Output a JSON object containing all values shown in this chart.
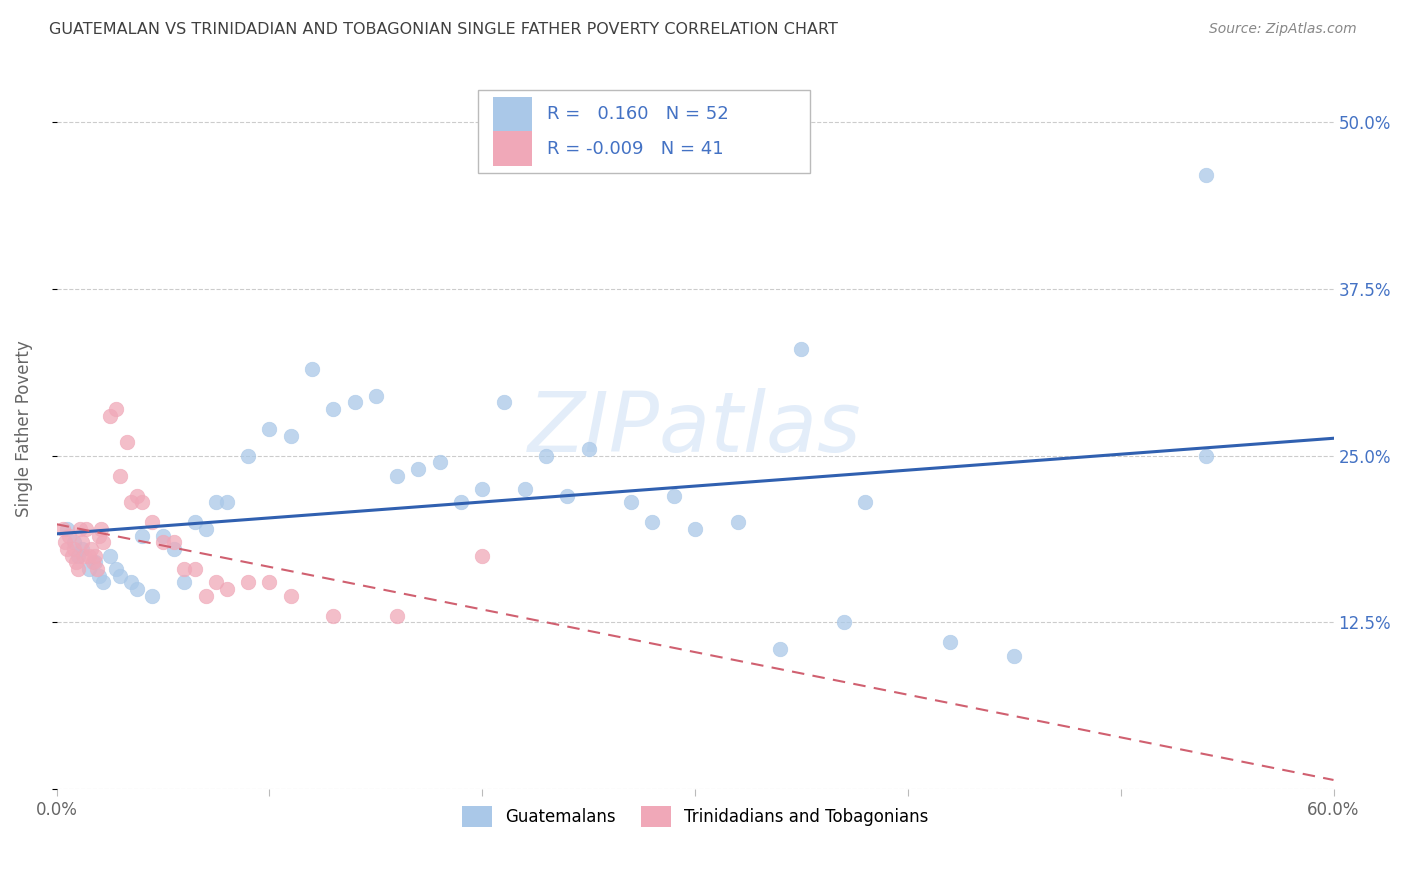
{
  "title": "GUATEMALAN VS TRINIDADIAN AND TOBAGONIAN SINGLE FATHER POVERTY CORRELATION CHART",
  "source": "Source: ZipAtlas.com",
  "ylabel": "Single Father Poverty",
  "R_blue": 0.16,
  "N_blue": 52,
  "R_pink": -0.009,
  "N_pink": 41,
  "blue_color": "#aac8e8",
  "pink_color": "#f0a8b8",
  "blue_line_color": "#3060b0",
  "pink_line_color": "#d06070",
  "text_color": "#4472c4",
  "title_color": "#404040",
  "source_color": "#888888",
  "watermark": "ZIPatlas",
  "xlim": [
    0.0,
    0.6
  ],
  "ylim": [
    0.0,
    0.54
  ],
  "blue_x": [
    0.005,
    0.008,
    0.01,
    0.012,
    0.015,
    0.018,
    0.02,
    0.022,
    0.025,
    0.028,
    0.03,
    0.035,
    0.038,
    0.04,
    0.045,
    0.05,
    0.055,
    0.06,
    0.065,
    0.07,
    0.075,
    0.08,
    0.09,
    0.1,
    0.11,
    0.12,
    0.13,
    0.14,
    0.15,
    0.16,
    0.17,
    0.18,
    0.19,
    0.2,
    0.21,
    0.22,
    0.23,
    0.24,
    0.25,
    0.27,
    0.28,
    0.29,
    0.3,
    0.32,
    0.34,
    0.35,
    0.37,
    0.38,
    0.42,
    0.45,
    0.54,
    0.54
  ],
  "blue_y": [
    0.195,
    0.185,
    0.175,
    0.18,
    0.165,
    0.17,
    0.16,
    0.155,
    0.175,
    0.165,
    0.16,
    0.155,
    0.15,
    0.19,
    0.145,
    0.19,
    0.18,
    0.155,
    0.2,
    0.195,
    0.215,
    0.215,
    0.25,
    0.27,
    0.265,
    0.315,
    0.285,
    0.29,
    0.295,
    0.235,
    0.24,
    0.245,
    0.215,
    0.225,
    0.29,
    0.225,
    0.25,
    0.22,
    0.255,
    0.215,
    0.2,
    0.22,
    0.195,
    0.2,
    0.105,
    0.33,
    0.125,
    0.215,
    0.11,
    0.1,
    0.25,
    0.46
  ],
  "pink_x": [
    0.003,
    0.004,
    0.005,
    0.006,
    0.007,
    0.008,
    0.009,
    0.01,
    0.011,
    0.012,
    0.013,
    0.014,
    0.015,
    0.016,
    0.017,
    0.018,
    0.019,
    0.02,
    0.021,
    0.022,
    0.025,
    0.028,
    0.03,
    0.033,
    0.035,
    0.038,
    0.04,
    0.045,
    0.05,
    0.055,
    0.06,
    0.065,
    0.07,
    0.075,
    0.08,
    0.09,
    0.1,
    0.11,
    0.13,
    0.16,
    0.2
  ],
  "pink_y": [
    0.195,
    0.185,
    0.18,
    0.19,
    0.175,
    0.18,
    0.17,
    0.165,
    0.195,
    0.185,
    0.175,
    0.195,
    0.175,
    0.18,
    0.17,
    0.175,
    0.165,
    0.19,
    0.195,
    0.185,
    0.28,
    0.285,
    0.235,
    0.26,
    0.215,
    0.22,
    0.215,
    0.2,
    0.185,
    0.185,
    0.165,
    0.165,
    0.145,
    0.155,
    0.15,
    0.155,
    0.155,
    0.145,
    0.13,
    0.13,
    0.175
  ]
}
